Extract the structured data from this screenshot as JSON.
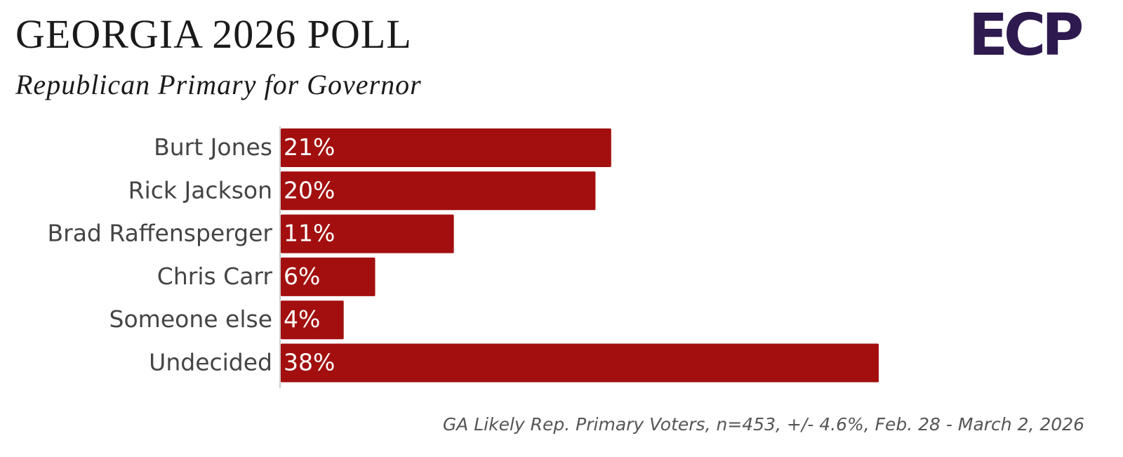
{
  "chart_data": {
    "type": "hbar",
    "title": "GEORGIA 2026 POLL",
    "subtitle": "Republican Primary for Governor",
    "logo": "ECP",
    "note": "GA Likely Rep. Primary Voters, n=453, +/- 4.6%, Feb. 28 - March 2, 2026",
    "categories": [
      "Burt Jones",
      "Rick Jackson",
      "Brad Raffensperger",
      "Chris Carr",
      "Someone else",
      "Undecided"
    ],
    "values": [
      21,
      20,
      11,
      6,
      4,
      38
    ],
    "value_labels": [
      "21%",
      "20%",
      "11%",
      "6%",
      "4%",
      "38%"
    ],
    "color": "#a30f0f"
  }
}
